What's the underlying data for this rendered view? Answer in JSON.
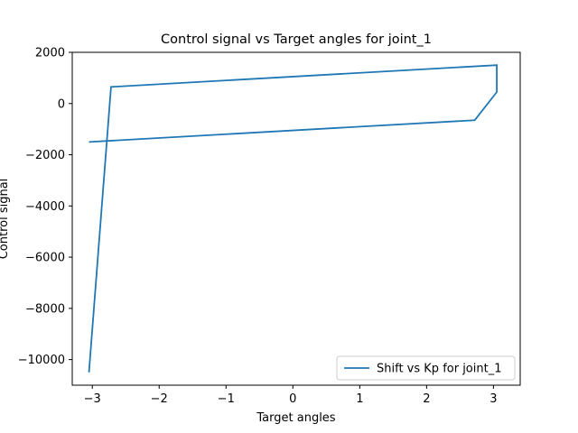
{
  "chart_data": {
    "type": "line",
    "title": "Control signal vs Target angles for joint_1",
    "xlabel": "Target angles",
    "ylabel": "Control signal",
    "xlim": [
      -3.3,
      3.4
    ],
    "ylim": [
      -11000,
      2000
    ],
    "xticks": [
      -3,
      -2,
      -1,
      0,
      1,
      2,
      3
    ],
    "yticks": [
      2000,
      0,
      -2000,
      -4000,
      -6000,
      -8000,
      -10000
    ],
    "xtick_labels": [
      "−3",
      "−2",
      "−1",
      "0",
      "1",
      "2",
      "3"
    ],
    "ytick_labels": [
      "2000",
      "0",
      "−2000",
      "−4000",
      "−6000",
      "−8000",
      "−10000"
    ],
    "grid": false,
    "legend_position": "lower-right",
    "series": [
      {
        "name": "Shift vs Kp for joint_1",
        "color": "#1f77b4",
        "x": [
          -3.05,
          -2.72,
          3.05,
          3.05,
          2.72,
          -3.05
        ],
        "y": [
          -10500,
          650,
          1500,
          450,
          -650,
          -1500
        ]
      }
    ]
  }
}
